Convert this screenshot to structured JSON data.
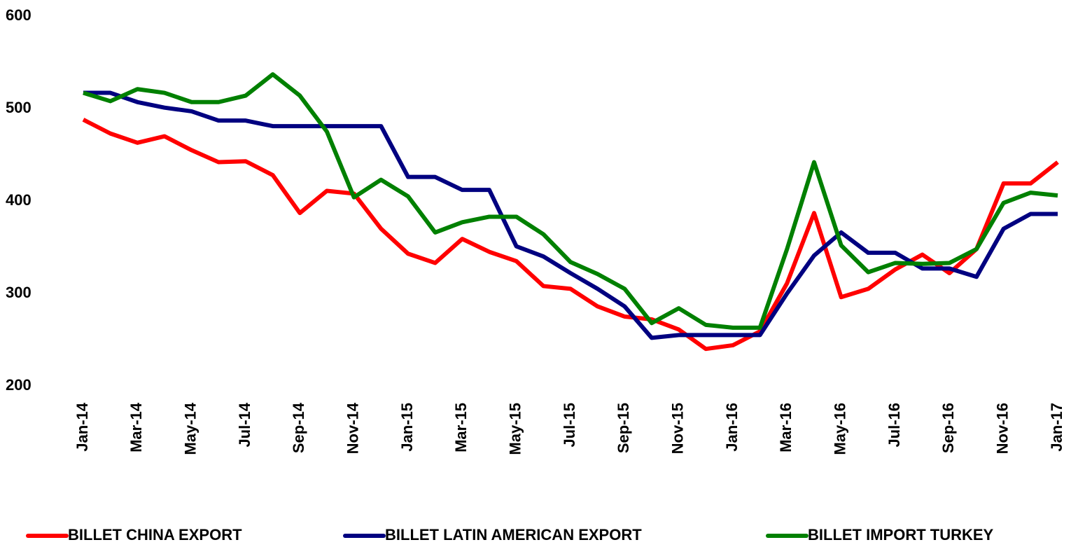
{
  "chart_data": {
    "type": "line",
    "categories": [
      "Jan-14",
      null,
      "Mar-14",
      null,
      "May-14",
      null,
      "Jul-14",
      null,
      "Sep-14",
      null,
      "Nov-14",
      null,
      "Jan-15",
      null,
      "Mar-15",
      null,
      "May-15",
      null,
      "Jul-15",
      null,
      "Sep-15",
      null,
      "Nov-15",
      null,
      "Jan-16",
      null,
      "Mar-16",
      null,
      "May-16",
      null,
      "Jul-16",
      null,
      "Sep-16",
      null,
      "Nov-16",
      null,
      "Jan-17"
    ],
    "series": [
      {
        "name": "BILLET CHINA EXPORT",
        "color": "#ff0000",
        "values": [
          488,
          473,
          463,
          470,
          455,
          442,
          443,
          428,
          387,
          411,
          408,
          370,
          343,
          333,
          359,
          345,
          335,
          308,
          305,
          286,
          275,
          272,
          261,
          240,
          244,
          259,
          311,
          387,
          296,
          305,
          326,
          342,
          322,
          348,
          419,
          419,
          442
        ]
      },
      {
        "name": "BILLET LATIN AMERICAN EXPORT",
        "color": "#000080",
        "values": [
          517,
          517,
          507,
          501,
          497,
          487,
          487,
          481,
          481,
          481,
          481,
          481,
          426,
          426,
          412,
          412,
          351,
          340,
          322,
          305,
          286,
          252,
          255,
          255,
          255,
          255,
          300,
          341,
          366,
          344,
          344,
          327,
          327,
          318,
          370,
          386,
          386
        ]
      },
      {
        "name": "BILLET IMPORT TURKEY",
        "color": "#008000",
        "values": [
          517,
          508,
          521,
          517,
          507,
          507,
          514,
          537,
          514,
          475,
          404,
          423,
          405,
          366,
          377,
          383,
          383,
          364,
          334,
          321,
          305,
          268,
          284,
          266,
          263,
          263,
          348,
          442,
          352,
          323,
          333,
          332,
          333,
          348,
          398,
          409,
          406
        ]
      }
    ],
    "ylim": [
      200,
      600
    ],
    "yticks": [
      200,
      300,
      400,
      500,
      600
    ],
    "grid": false,
    "legend": "bottom"
  }
}
